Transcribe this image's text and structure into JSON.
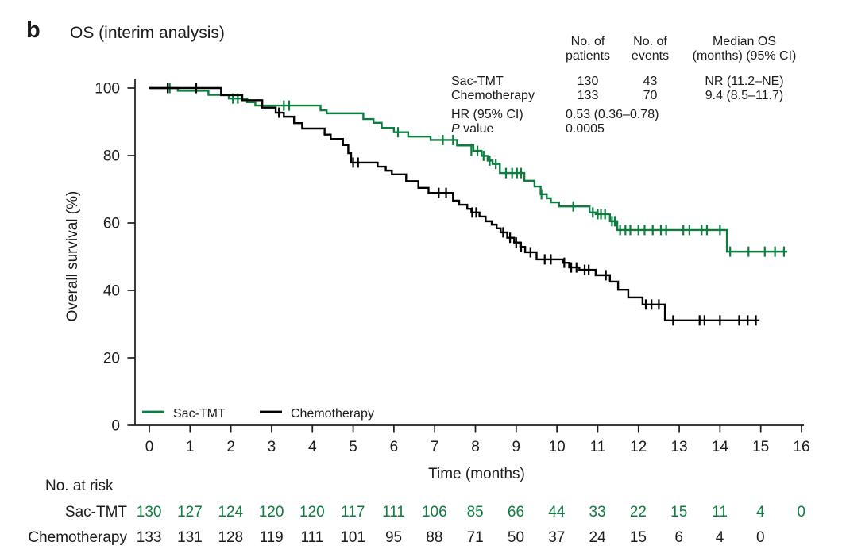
{
  "panel_label": "b",
  "figure_title": "OS (interim analysis)",
  "colors": {
    "sac_tmt_green": "#0d7d3f",
    "chemo_black": "#000000",
    "axis": "#1c1b1a"
  },
  "stats_table": {
    "col_headers": [
      "No. of\npatients",
      "No. of\nevents",
      "Median OS\n(months) (95% CI)"
    ],
    "rows": [
      {
        "label": "Sac-TMT",
        "patients": "130",
        "events": "43",
        "median_os": "NR (11.2–NE)"
      },
      {
        "label": "Chemotherapy",
        "patients": "133",
        "events": "70",
        "median_os": "9.4 (8.5–11.7)"
      }
    ],
    "hr_label": "HR (95% CI)",
    "hr_value": "0.53 (0.36–0.78)",
    "p_label_italic": "P",
    "p_label_rest": " value",
    "p_value": "0.0005"
  },
  "legend": [
    {
      "label": "Sac-TMT",
      "color": "#0d7d3f"
    },
    {
      "label": "Chemotherapy",
      "color": "#000000"
    }
  ],
  "chart_data": {
    "type": "line",
    "subtype": "kaplan_meier_step",
    "title": "OS (interim analysis)",
    "xlabel": "Time (months)",
    "ylabel": "Overall survival (%)",
    "xlim": [
      0,
      16
    ],
    "ylim": [
      0,
      100
    ],
    "xticks": [
      0,
      1,
      2,
      3,
      4,
      5,
      6,
      7,
      8,
      9,
      10,
      11,
      12,
      13,
      14,
      15,
      16
    ],
    "yticks": [
      0,
      20,
      40,
      60,
      80,
      100
    ],
    "grid": false,
    "series": [
      {
        "name": "Sac-TMT",
        "color": "#0d7d3f",
        "median_os": "NR (11.2–NE)",
        "steps": [
          [
            0,
            100
          ],
          [
            0.7,
            99.2
          ],
          [
            1.45,
            98.0
          ],
          [
            1.95,
            96.9
          ],
          [
            2.4,
            95.8
          ],
          [
            2.6,
            94.8
          ],
          [
            4.2,
            93.4
          ],
          [
            4.35,
            92.5
          ],
          [
            5.25,
            90.8
          ],
          [
            5.5,
            89.7
          ],
          [
            5.7,
            88.2
          ],
          [
            6.0,
            86.9
          ],
          [
            6.35,
            85.6
          ],
          [
            6.9,
            84.6
          ],
          [
            7.55,
            83.0
          ],
          [
            7.95,
            81.4
          ],
          [
            8.15,
            79.9
          ],
          [
            8.3,
            78.5
          ],
          [
            8.42,
            77.5
          ],
          [
            8.6,
            74.8
          ],
          [
            9.2,
            72.5
          ],
          [
            9.45,
            70.8
          ],
          [
            9.6,
            68.5
          ],
          [
            9.75,
            67.3
          ],
          [
            9.85,
            66.1
          ],
          [
            10.05,
            64.9
          ],
          [
            10.8,
            63.1
          ],
          [
            10.95,
            62.6
          ],
          [
            11.3,
            60.5
          ],
          [
            11.48,
            57.9
          ],
          [
            14.17,
            51.5
          ]
        ],
        "end_time": 15.65,
        "censor_marks": [
          [
            0.5,
            100
          ],
          [
            2.05,
            96.9
          ],
          [
            2.17,
            96.9
          ],
          [
            3.3,
            94.8
          ],
          [
            3.43,
            94.8
          ],
          [
            6.1,
            86.9
          ],
          [
            7.2,
            84.6
          ],
          [
            7.45,
            84.6
          ],
          [
            7.9,
            81.4
          ],
          [
            8.05,
            81.4
          ],
          [
            8.2,
            79.9
          ],
          [
            8.35,
            78.5
          ],
          [
            8.5,
            77.5
          ],
          [
            8.75,
            74.8
          ],
          [
            8.9,
            74.8
          ],
          [
            9.02,
            74.8
          ],
          [
            9.12,
            74.8
          ],
          [
            9.62,
            68.5
          ],
          [
            10.4,
            64.9
          ],
          [
            10.88,
            63.1
          ],
          [
            11.0,
            62.6
          ],
          [
            11.08,
            62.6
          ],
          [
            11.18,
            62.6
          ],
          [
            11.35,
            60.5
          ],
          [
            11.42,
            60.5
          ],
          [
            11.55,
            57.9
          ],
          [
            11.68,
            57.9
          ],
          [
            11.8,
            57.9
          ],
          [
            12.0,
            57.9
          ],
          [
            12.15,
            57.9
          ],
          [
            12.35,
            57.9
          ],
          [
            12.55,
            57.9
          ],
          [
            12.68,
            57.9
          ],
          [
            13.1,
            57.9
          ],
          [
            13.25,
            57.9
          ],
          [
            13.55,
            57.9
          ],
          [
            13.68,
            57.9
          ],
          [
            14.0,
            57.9
          ],
          [
            14.25,
            51.5
          ],
          [
            14.7,
            51.5
          ],
          [
            15.1,
            51.5
          ],
          [
            15.35,
            51.5
          ],
          [
            15.57,
            51.5
          ]
        ]
      },
      {
        "name": "Chemotherapy",
        "color": "#000000",
        "median_os": "9.4 (8.5–11.7)",
        "steps": [
          [
            0,
            100
          ],
          [
            1.76,
            97.9
          ],
          [
            2.28,
            96.4
          ],
          [
            2.77,
            94.2
          ],
          [
            3.1,
            92.7
          ],
          [
            3.3,
            91.5
          ],
          [
            3.55,
            89.6
          ],
          [
            3.75,
            88.0
          ],
          [
            4.3,
            86.2
          ],
          [
            4.45,
            84.9
          ],
          [
            4.75,
            83.1
          ],
          [
            4.88,
            80.7
          ],
          [
            4.95,
            77.9
          ],
          [
            5.6,
            76.7
          ],
          [
            5.8,
            75.5
          ],
          [
            5.95,
            74.4
          ],
          [
            6.3,
            72.4
          ],
          [
            6.6,
            70.4
          ],
          [
            6.85,
            68.9
          ],
          [
            7.45,
            66.6
          ],
          [
            7.6,
            65.4
          ],
          [
            7.8,
            64.2
          ],
          [
            7.9,
            63.1
          ],
          [
            8.1,
            61.9
          ],
          [
            8.25,
            60.5
          ],
          [
            8.4,
            59.5
          ],
          [
            8.52,
            58.4
          ],
          [
            8.62,
            57.2
          ],
          [
            8.78,
            55.6
          ],
          [
            8.95,
            54.2
          ],
          [
            9.1,
            52.9
          ],
          [
            9.22,
            51.3
          ],
          [
            9.5,
            49.2
          ],
          [
            10.15,
            48.2
          ],
          [
            10.3,
            46.8
          ],
          [
            10.55,
            46.1
          ],
          [
            10.95,
            44.5
          ],
          [
            11.3,
            42.6
          ],
          [
            11.5,
            40.2
          ],
          [
            11.75,
            37.9
          ],
          [
            12.1,
            35.8
          ],
          [
            12.65,
            31.1
          ]
        ],
        "end_time": 14.97,
        "censor_marks": [
          [
            0.45,
            100
          ],
          [
            1.15,
            100
          ],
          [
            3.18,
            92.7
          ],
          [
            5.0,
            77.9
          ],
          [
            5.12,
            77.9
          ],
          [
            7.1,
            68.9
          ],
          [
            7.28,
            68.9
          ],
          [
            7.92,
            63.1
          ],
          [
            8.02,
            63.1
          ],
          [
            8.68,
            57.2
          ],
          [
            8.85,
            55.6
          ],
          [
            9.0,
            54.2
          ],
          [
            9.12,
            52.9
          ],
          [
            9.35,
            51.3
          ],
          [
            9.7,
            49.2
          ],
          [
            9.85,
            49.2
          ],
          [
            10.18,
            48.2
          ],
          [
            10.35,
            46.8
          ],
          [
            10.48,
            46.8
          ],
          [
            10.68,
            46.1
          ],
          [
            10.78,
            46.1
          ],
          [
            11.2,
            44.5
          ],
          [
            12.18,
            35.8
          ],
          [
            12.32,
            35.8
          ],
          [
            12.5,
            35.8
          ],
          [
            12.85,
            31.1
          ],
          [
            13.5,
            31.1
          ],
          [
            13.62,
            31.1
          ],
          [
            14.0,
            31.1
          ],
          [
            14.47,
            31.1
          ],
          [
            14.68,
            31.1
          ],
          [
            14.88,
            31.1
          ]
        ]
      }
    ]
  },
  "risk_table": {
    "title": "No. at risk",
    "timepoints": [
      0,
      1,
      2,
      3,
      4,
      5,
      6,
      7,
      8,
      9,
      10,
      11,
      12,
      13,
      14,
      15,
      16
    ],
    "rows": [
      {
        "label": "Sac-TMT",
        "color": "#0d7d3f",
        "values": [
          "130",
          "127",
          "124",
          "120",
          "120",
          "117",
          "111",
          "106",
          "85",
          "66",
          "44",
          "33",
          "22",
          "15",
          "11",
          "4",
          "0"
        ]
      },
      {
        "label": "Chemotherapy",
        "color": "#1c1b1a",
        "values": [
          "133",
          "131",
          "128",
          "119",
          "111",
          "101",
          "95",
          "88",
          "71",
          "50",
          "37",
          "24",
          "15",
          "6",
          "4",
          "0",
          ""
        ]
      }
    ]
  }
}
